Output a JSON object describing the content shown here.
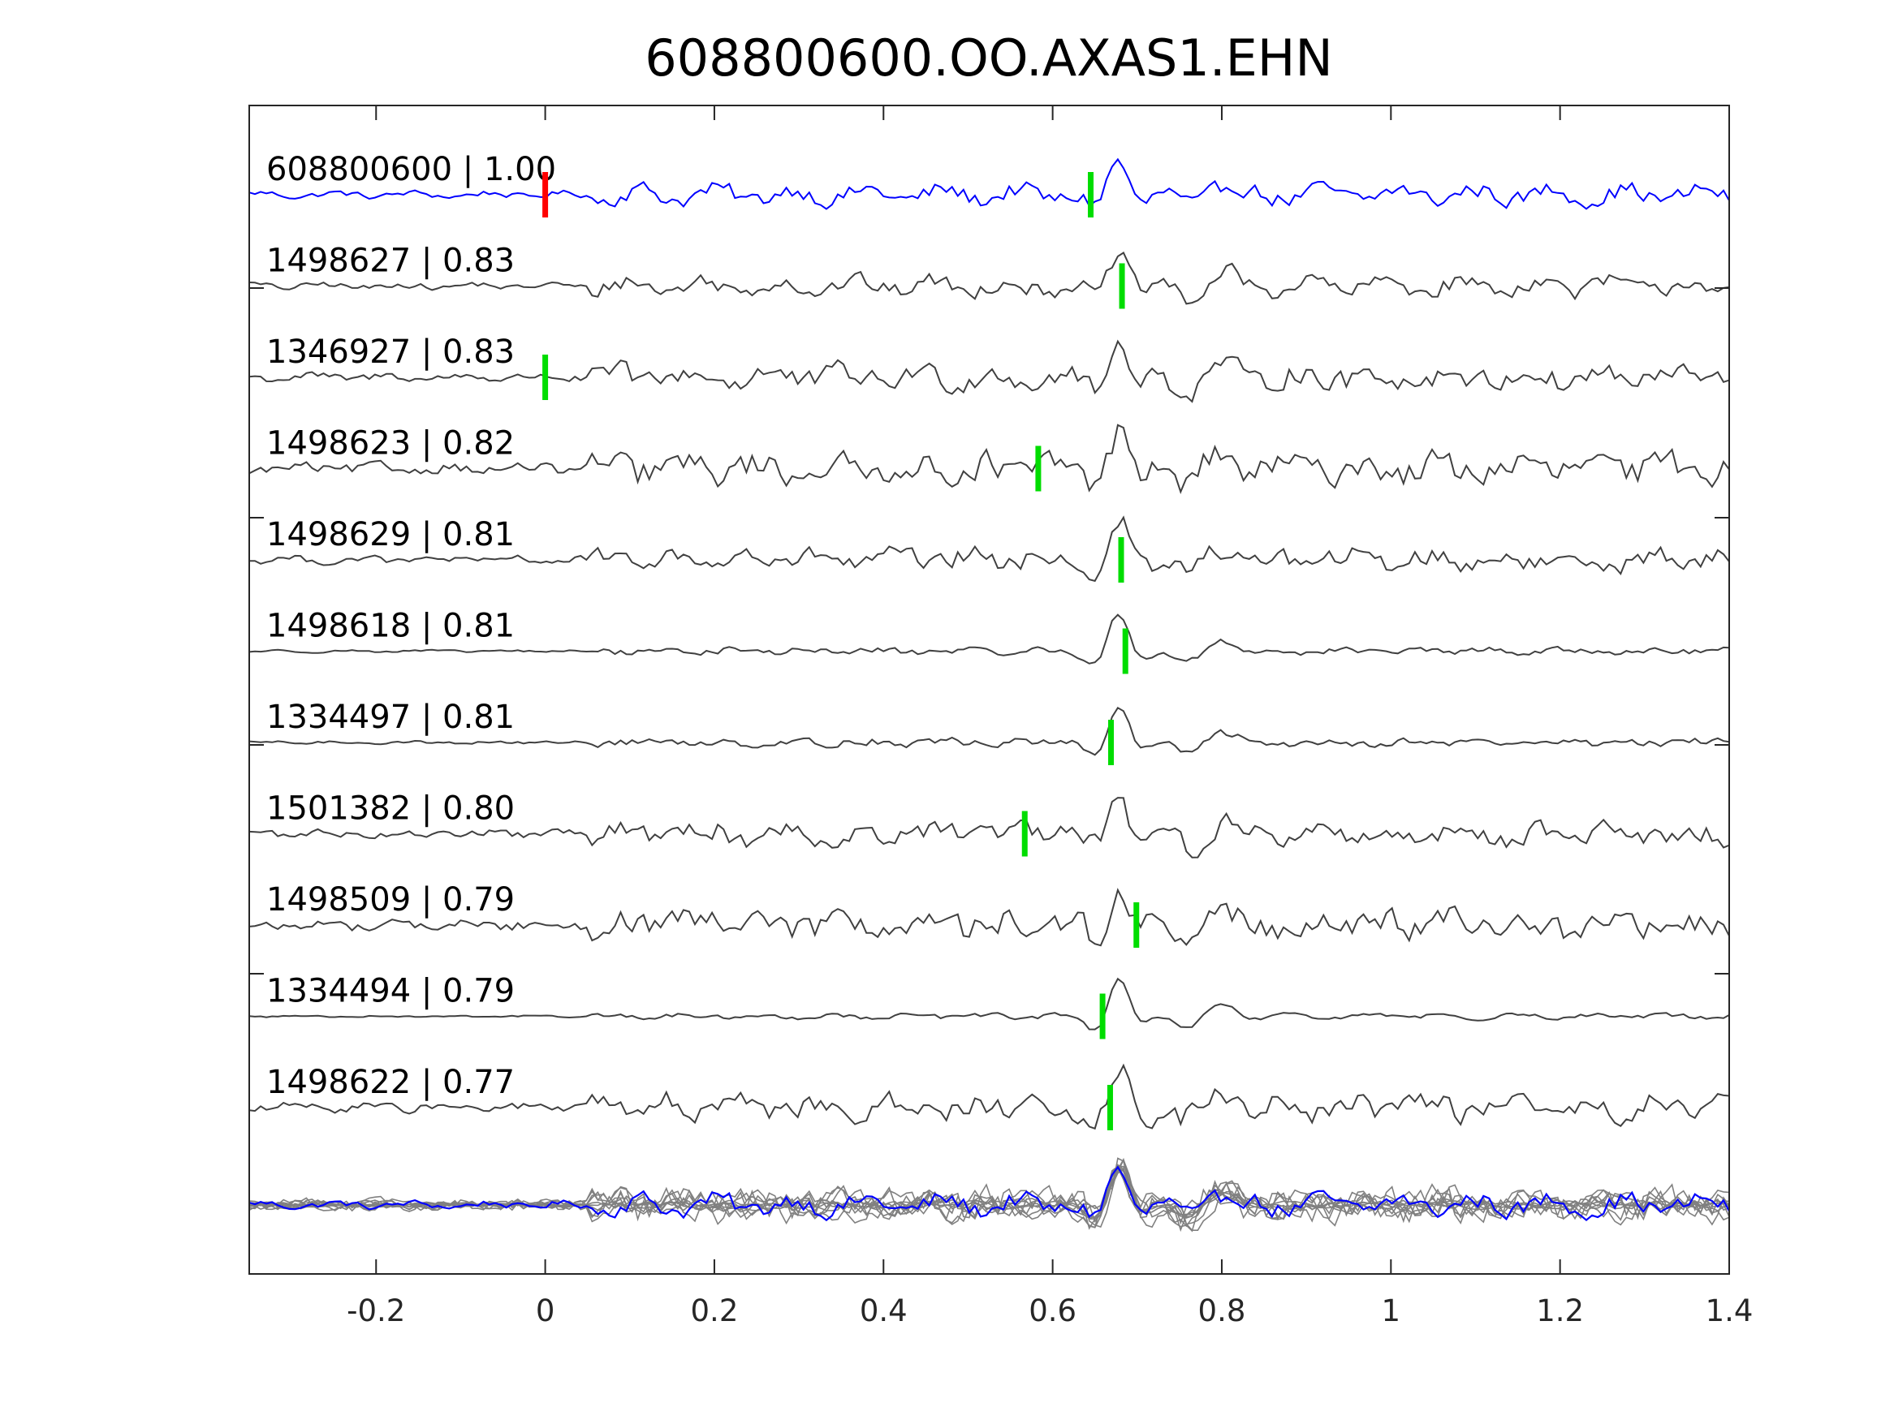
{
  "chart_data": {
    "type": "line",
    "title": "608800600.OO.AXAS1.EHN",
    "xlabel": "",
    "ylabel": "",
    "xlim": [
      -0.35,
      1.4
    ],
    "xticks": [
      -0.2,
      0,
      0.2,
      0.4,
      0.6,
      0.8,
      1,
      1.2,
      1.4
    ],
    "xtick_labels": [
      "-0.2",
      "0",
      "0.2",
      "0.4",
      "0.6",
      "0.8",
      "1",
      "1.2",
      "1.4"
    ],
    "grid": false,
    "colors": {
      "template": "#0000ff",
      "neighbor": "#404040",
      "stack": "#808080",
      "origin_pick": "#ff0000",
      "phase_pick": "#00dd00",
      "axes": "#262626"
    },
    "traces": [
      {
        "label": "608800600 | 1.00",
        "id": "608800600",
        "cc": 1.0,
        "pick": 0.645,
        "origin_pick": 0,
        "template": true
      },
      {
        "label": "1498627 | 0.83",
        "id": "1498627",
        "cc": 0.83,
        "pick": 0.682
      },
      {
        "label": "1346927 | 0.83",
        "id": "1346927",
        "cc": 0.83,
        "pick": 0.0
      },
      {
        "label": "1498623 | 0.82",
        "id": "1498623",
        "cc": 0.82,
        "pick": 0.583
      },
      {
        "label": "1498629 | 0.81",
        "id": "1498629",
        "cc": 0.81,
        "pick": 0.681
      },
      {
        "label": "1498618 | 0.81",
        "id": "1498618",
        "cc": 0.81,
        "pick": 0.686
      },
      {
        "label": "1334497 | 0.81",
        "id": "1334497",
        "cc": 0.81,
        "pick": 0.669
      },
      {
        "label": "1501382 | 0.80",
        "id": "1501382",
        "cc": 0.8,
        "pick": 0.567
      },
      {
        "label": "1498509 | 0.79",
        "id": "1498509",
        "cc": 0.79,
        "pick": 0.699
      },
      {
        "label": "1334494 | 0.79",
        "id": "1334494",
        "cc": 0.79,
        "pick": 0.659
      },
      {
        "label": "1498622 | 0.77",
        "id": "1498622",
        "cc": 0.77,
        "pick": 0.668
      }
    ],
    "stack_panel": "overlay of all traces (template in blue)"
  }
}
